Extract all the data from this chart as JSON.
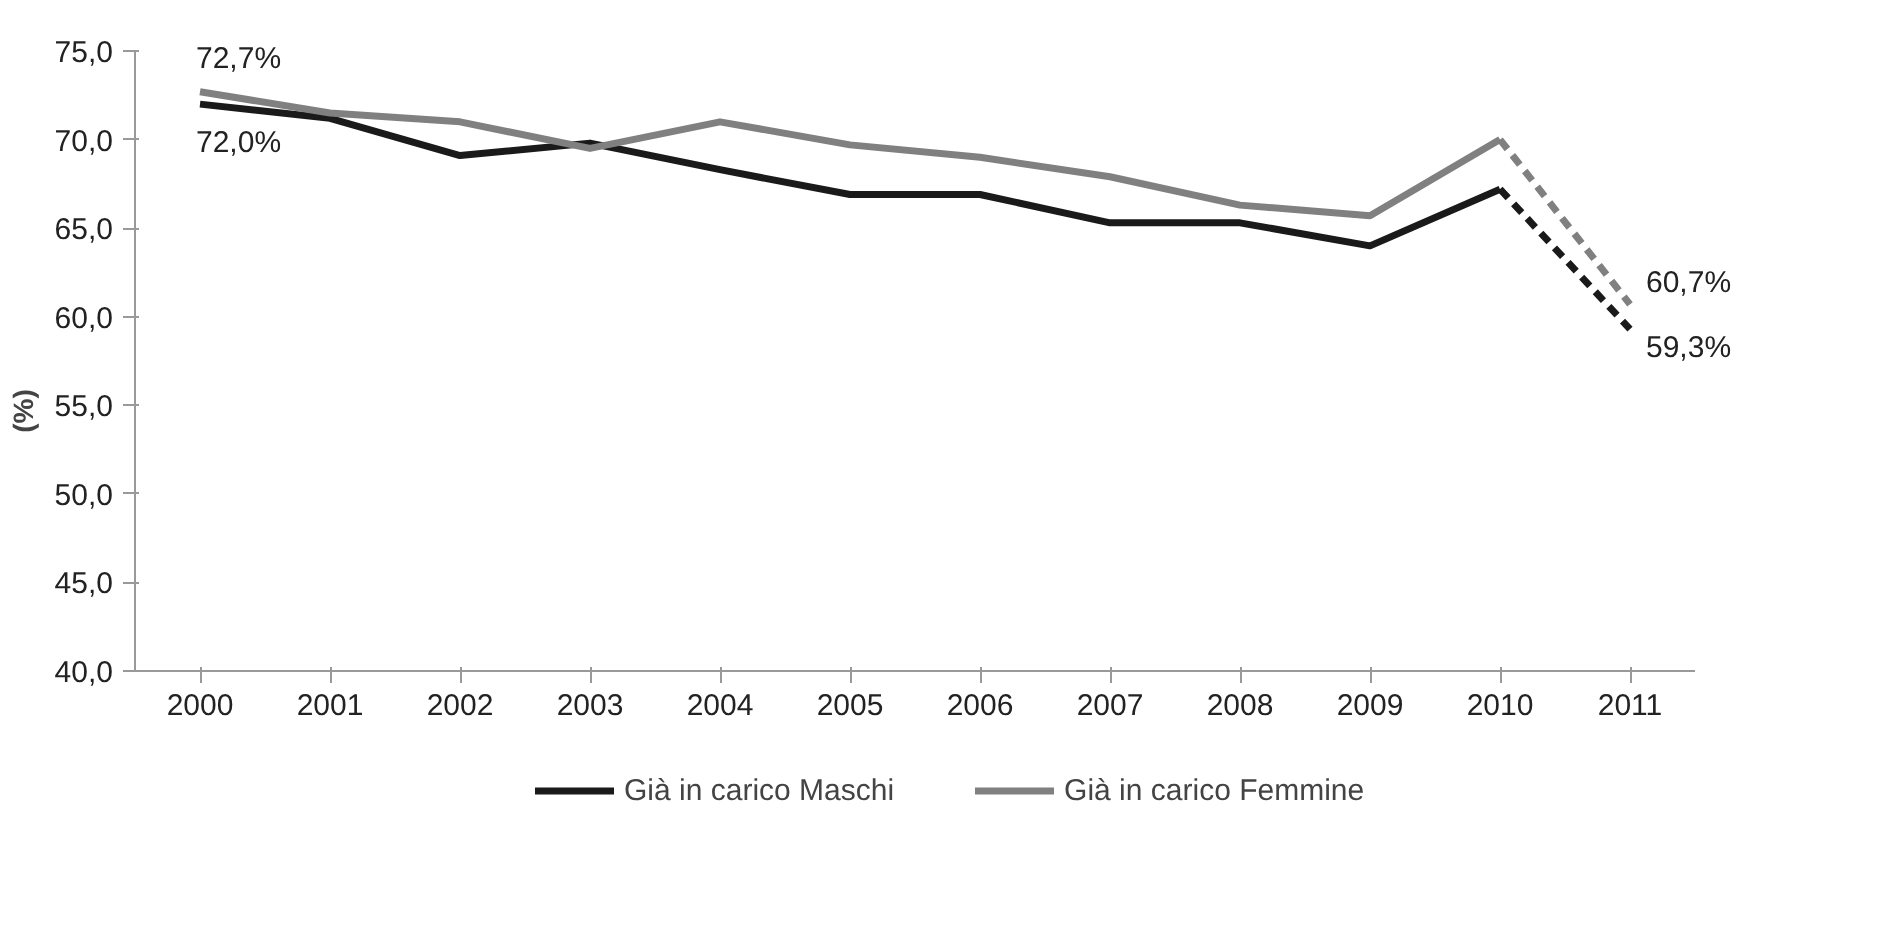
{
  "chart_data": {
    "type": "line",
    "ylabel": "(%)",
    "categories": [
      "2000",
      "2001",
      "2002",
      "2003",
      "2004",
      "2005",
      "2006",
      "2007",
      "2008",
      "2009",
      "2010",
      "2011"
    ],
    "ylim": [
      40,
      75
    ],
    "yticks": [
      {
        "value": 40,
        "label": "40,0"
      },
      {
        "value": 45,
        "label": "45,0"
      },
      {
        "value": 50,
        "label": "50,0"
      },
      {
        "value": 55,
        "label": "55,0"
      },
      {
        "value": 60,
        "label": "60,0"
      },
      {
        "value": 65,
        "label": "65,0"
      },
      {
        "value": 70,
        "label": "70,0"
      },
      {
        "value": 75,
        "label": "75,0"
      }
    ],
    "grid": false,
    "legend": "bottom",
    "marker": "none",
    "series": [
      {
        "name": "Già in carico Maschi",
        "color": "#1a1a1a",
        "line_style": "solid",
        "values": [
          72.0,
          71.2,
          69.1,
          69.8,
          68.3,
          66.9,
          66.9,
          65.3,
          65.3,
          64.0,
          67.2,
          null
        ],
        "value_labels": [
          "72,0%",
          null,
          null,
          null,
          null,
          null,
          null,
          null,
          null,
          null,
          null,
          null
        ]
      },
      {
        "name": "Già in carico Femmine",
        "color": "#808080",
        "line_style": "solid",
        "values": [
          72.7,
          71.5,
          71.0,
          69.5,
          71.0,
          69.7,
          69.0,
          67.9,
          66.3,
          65.7,
          70.0,
          null
        ],
        "value_labels": [
          "72,7%",
          null,
          null,
          null,
          null,
          null,
          null,
          null,
          null,
          null,
          null,
          null
        ]
      },
      {
        "color": "#1a1a1a",
        "line_style": "dashed",
        "values": [
          null,
          null,
          null,
          null,
          null,
          null,
          null,
          null,
          null,
          null,
          67.2,
          59.3
        ],
        "value_labels": [
          null,
          null,
          null,
          null,
          null,
          null,
          null,
          null,
          null,
          null,
          null,
          "59,3%"
        ]
      },
      {
        "color": "#808080",
        "line_style": "dashed",
        "values": [
          null,
          null,
          null,
          null,
          null,
          null,
          null,
          null,
          null,
          null,
          70.0,
          60.7
        ],
        "value_labels": [
          null,
          null,
          null,
          null,
          null,
          null,
          null,
          null,
          null,
          null,
          null,
          "60,7%"
        ]
      }
    ]
  }
}
